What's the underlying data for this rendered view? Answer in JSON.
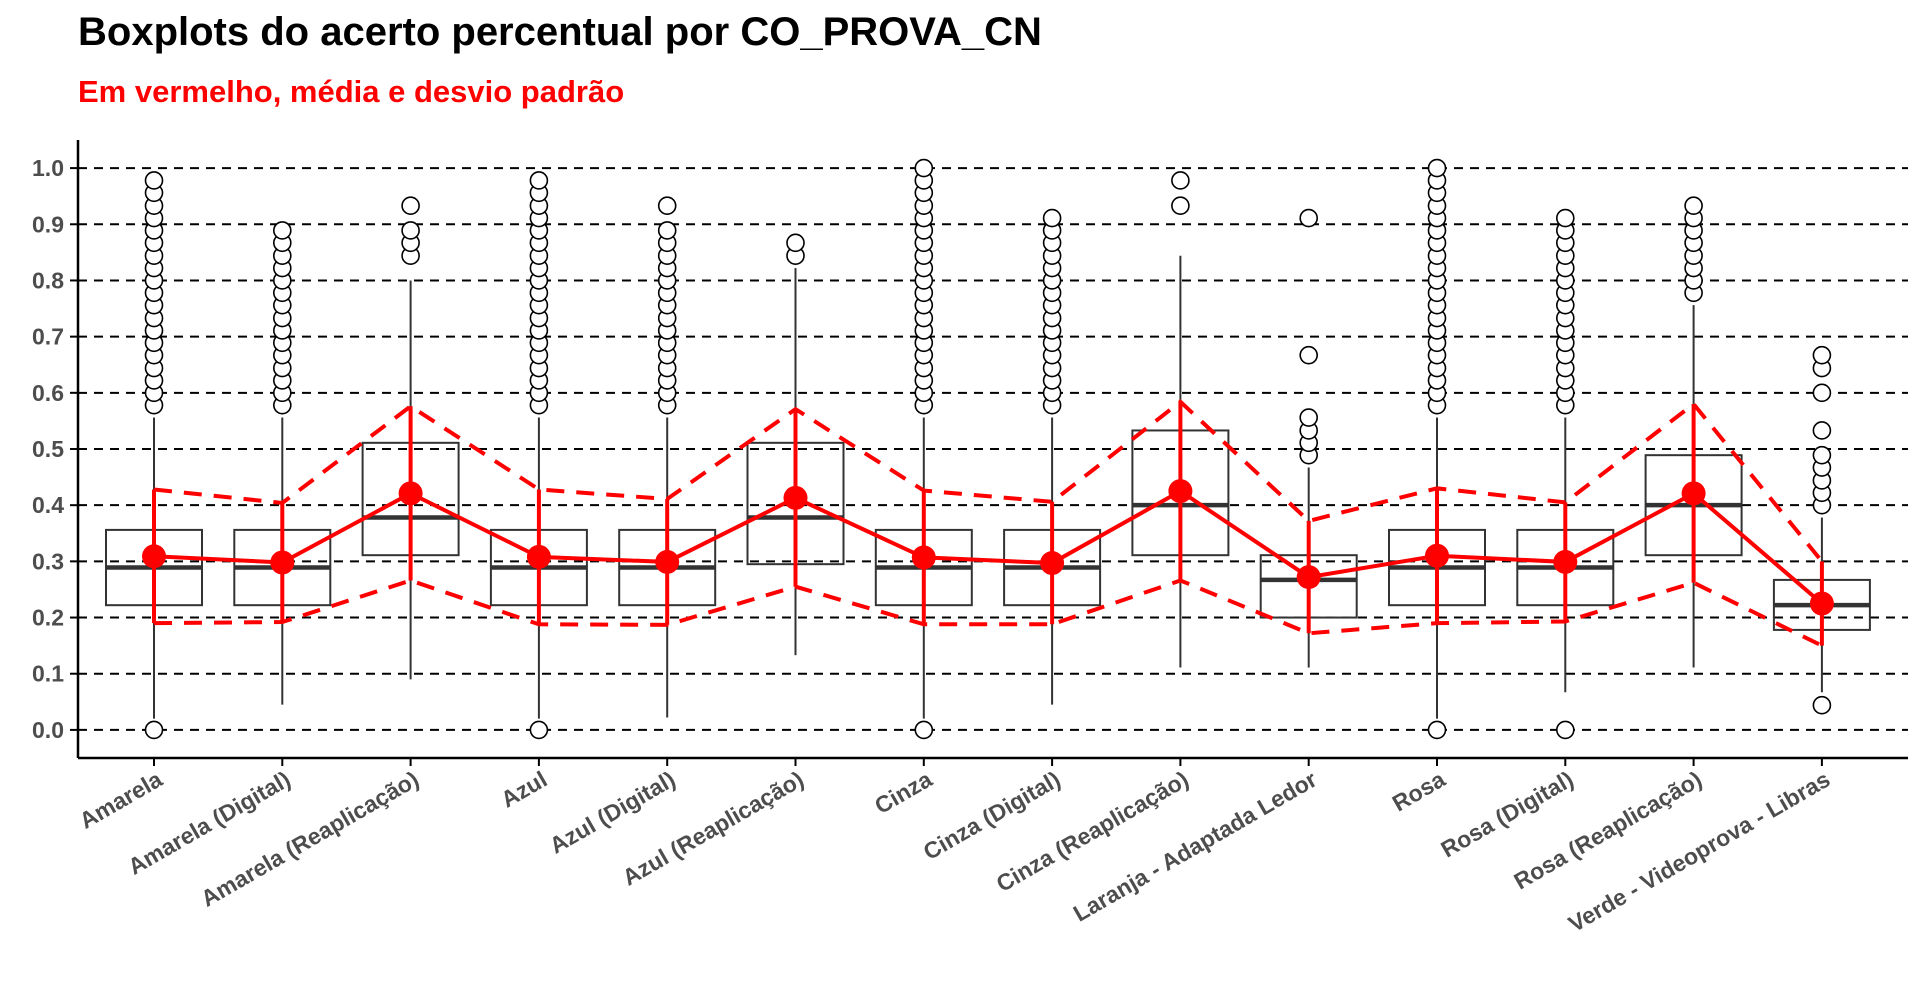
{
  "colors": {
    "accent": "#ff0000",
    "box_stroke": "#333333",
    "median": "#333333",
    "grid": "#000000",
    "axis": "#000000",
    "outlier_fill": "#ffffff",
    "outlier_stroke": "#000000"
  },
  "chart_data": {
    "type": "boxplot",
    "title": "Boxplots do acerto percentual por CO_PROVA_CN",
    "subtitle": "Em vermelho, média e desvio padrão",
    "xlabel": "",
    "ylabel": "",
    "ylim": [
      -0.05,
      1.05
    ],
    "yticks": [
      0.0,
      0.1,
      0.2,
      0.3,
      0.4,
      0.5,
      0.6,
      0.7,
      0.8,
      0.9,
      1.0
    ],
    "ytick_labels": [
      "0.0",
      "0.1",
      "0.2",
      "0.3",
      "0.4",
      "0.5",
      "0.6",
      "0.7",
      "0.8",
      "0.9",
      "1.0"
    ],
    "grid": "horizontal dashed",
    "legend": "none",
    "categories": [
      "Amarela",
      "Amarela (Digital)",
      "Amarela (Reaplicação)",
      "Azul",
      "Azul (Digital)",
      "Azul (Reaplicação)",
      "Cinza",
      "Cinza (Digital)",
      "Cinza (Reaplicação)",
      "Laranja - Adaptada Ledor",
      "Rosa",
      "Rosa (Digital)",
      "Rosa (Reaplicação)",
      "Verde - Videoprova - Libras"
    ],
    "boxes": [
      {
        "whisker_low": 0.02,
        "q1": 0.222,
        "median": 0.289,
        "q3": 0.356,
        "whisker_high": 0.556,
        "outliers": [
          0.0,
          0.578,
          0.6,
          0.622,
          0.644,
          0.667,
          0.689,
          0.711,
          0.733,
          0.756,
          0.778,
          0.8,
          0.822,
          0.844,
          0.867,
          0.889,
          0.911,
          0.933,
          0.956,
          0.978
        ]
      },
      {
        "whisker_low": 0.045,
        "q1": 0.222,
        "median": 0.289,
        "q3": 0.356,
        "whisker_high": 0.556,
        "outliers": [
          0.578,
          0.6,
          0.622,
          0.644,
          0.667,
          0.689,
          0.711,
          0.733,
          0.756,
          0.778,
          0.8,
          0.822,
          0.844,
          0.867,
          0.889
        ]
      },
      {
        "whisker_low": 0.09,
        "q1": 0.311,
        "median": 0.378,
        "q3": 0.511,
        "whisker_high": 0.8,
        "outliers": [
          0.844,
          0.867,
          0.889,
          0.933
        ]
      },
      {
        "whisker_low": 0.02,
        "q1": 0.222,
        "median": 0.289,
        "q3": 0.356,
        "whisker_high": 0.556,
        "outliers": [
          0.0,
          0.578,
          0.6,
          0.622,
          0.644,
          0.667,
          0.689,
          0.711,
          0.733,
          0.756,
          0.778,
          0.8,
          0.822,
          0.844,
          0.867,
          0.889,
          0.911,
          0.933,
          0.956,
          0.978
        ]
      },
      {
        "whisker_low": 0.022,
        "q1": 0.222,
        "median": 0.289,
        "q3": 0.356,
        "whisker_high": 0.556,
        "outliers": [
          0.578,
          0.6,
          0.622,
          0.644,
          0.667,
          0.689,
          0.711,
          0.733,
          0.756,
          0.778,
          0.8,
          0.822,
          0.844,
          0.867,
          0.889,
          0.933
        ]
      },
      {
        "whisker_low": 0.133,
        "q1": 0.295,
        "median": 0.378,
        "q3": 0.511,
        "whisker_high": 0.822,
        "outliers": [
          0.844,
          0.867
        ]
      },
      {
        "whisker_low": 0.02,
        "q1": 0.222,
        "median": 0.289,
        "q3": 0.356,
        "whisker_high": 0.556,
        "outliers": [
          0.0,
          0.578,
          0.6,
          0.622,
          0.644,
          0.667,
          0.689,
          0.711,
          0.733,
          0.756,
          0.778,
          0.8,
          0.822,
          0.844,
          0.867,
          0.889,
          0.911,
          0.933,
          0.956,
          0.978,
          1.0
        ]
      },
      {
        "whisker_low": 0.045,
        "q1": 0.222,
        "median": 0.289,
        "q3": 0.356,
        "whisker_high": 0.556,
        "outliers": [
          0.578,
          0.6,
          0.622,
          0.644,
          0.667,
          0.689,
          0.711,
          0.733,
          0.756,
          0.778,
          0.8,
          0.822,
          0.844,
          0.867,
          0.889,
          0.911
        ]
      },
      {
        "whisker_low": 0.111,
        "q1": 0.311,
        "median": 0.4,
        "q3": 0.533,
        "whisker_high": 0.844,
        "outliers": [
          0.933,
          0.978
        ]
      },
      {
        "whisker_low": 0.111,
        "q1": 0.2,
        "median": 0.267,
        "q3": 0.311,
        "whisker_high": 0.467,
        "outliers": [
          0.489,
          0.511,
          0.533,
          0.556,
          0.667,
          0.911
        ]
      },
      {
        "whisker_low": 0.02,
        "q1": 0.222,
        "median": 0.289,
        "q3": 0.356,
        "whisker_high": 0.556,
        "outliers": [
          0.0,
          0.578,
          0.6,
          0.622,
          0.644,
          0.667,
          0.689,
          0.711,
          0.733,
          0.756,
          0.778,
          0.8,
          0.822,
          0.844,
          0.867,
          0.889,
          0.911,
          0.933,
          0.956,
          0.978,
          1.0
        ]
      },
      {
        "whisker_low": 0.067,
        "q1": 0.222,
        "median": 0.289,
        "q3": 0.356,
        "whisker_high": 0.556,
        "outliers": [
          0.0,
          0.578,
          0.6,
          0.622,
          0.644,
          0.667,
          0.689,
          0.711,
          0.733,
          0.756,
          0.778,
          0.8,
          0.822,
          0.844,
          0.867,
          0.889,
          0.911
        ]
      },
      {
        "whisker_low": 0.111,
        "q1": 0.311,
        "median": 0.4,
        "q3": 0.489,
        "whisker_high": 0.756,
        "outliers": [
          0.778,
          0.8,
          0.822,
          0.844,
          0.867,
          0.889,
          0.911,
          0.933
        ]
      },
      {
        "whisker_low": 0.067,
        "q1": 0.178,
        "median": 0.222,
        "q3": 0.267,
        "whisker_high": 0.378,
        "outliers": [
          0.044,
          0.4,
          0.422,
          0.444,
          0.467,
          0.489,
          0.533,
          0.6,
          0.644,
          0.667
        ]
      }
    ],
    "mean_sd_overlay": {
      "mean": [
        0.309,
        0.298,
        0.421,
        0.308,
        0.299,
        0.413,
        0.307,
        0.297,
        0.425,
        0.272,
        0.31,
        0.299,
        0.421,
        0.225
      ],
      "sd_low": [
        0.19,
        0.192,
        0.266,
        0.188,
        0.187,
        0.255,
        0.188,
        0.188,
        0.266,
        0.172,
        0.19,
        0.193,
        0.262,
        0.15
      ],
      "sd_high": [
        0.428,
        0.404,
        0.576,
        0.428,
        0.411,
        0.571,
        0.426,
        0.406,
        0.584,
        0.372,
        0.43,
        0.405,
        0.58,
        0.3
      ]
    }
  }
}
